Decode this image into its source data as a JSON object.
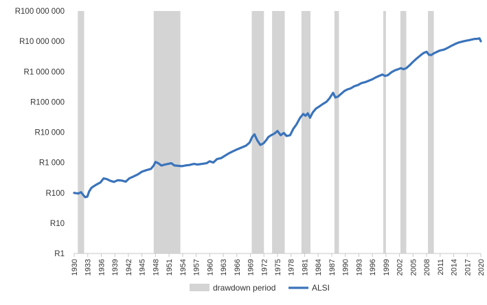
{
  "chart_data": {
    "type": "line",
    "title": "",
    "xlabel": "",
    "ylabel": "",
    "y_scale": "log",
    "ylim": [
      1,
      100000000
    ],
    "xlim": [
      1930,
      2020
    ],
    "grid": false,
    "legend_position": "bottom",
    "y_tick_labels": [
      "R1",
      "R10",
      "R100",
      "R1 000",
      "R10 000",
      "R100 000",
      "R1 000 000",
      "R10 000 000",
      "R100 000 000"
    ],
    "y_tick_values": [
      1,
      10,
      100,
      1000,
      10000,
      100000,
      1000000,
      10000000,
      100000000
    ],
    "x_tick_labels": [
      "1930",
      "1933",
      "1936",
      "1939",
      "1942",
      "1945",
      "1948",
      "1951",
      "1954",
      "1957",
      "1960",
      "1963",
      "1966",
      "1969",
      "1972",
      "1975",
      "1978",
      "1981",
      "1984",
      "1987",
      "1990",
      "1993",
      "1996",
      "1999",
      "2002",
      "2005",
      "2008",
      "2011",
      "2014",
      "2017",
      "2020"
    ],
    "series": [
      {
        "name": "ALSI",
        "color": "#3a73bb",
        "x": [
          1930,
          1930.9,
          1931.5,
          1932.0,
          1932.4,
          1932.9,
          1933.3,
          1933.8,
          1934.3,
          1935.0,
          1935.8,
          1936.5,
          1937.2,
          1938.0,
          1938.8,
          1939.6,
          1940.5,
          1941.4,
          1942.2,
          1943.0,
          1944.0,
          1945.0,
          1946.0,
          1947.0,
          1947.6,
          1948.0,
          1948.6,
          1949.3,
          1950.0,
          1950.8,
          1951.5,
          1952.2,
          1953.0,
          1953.8,
          1954.6,
          1955.5,
          1956.5,
          1957.3,
          1958.3,
          1959.3,
          1960.0,
          1960.8,
          1961.6,
          1962.5,
          1963.3,
          1964.2,
          1965.0,
          1966.0,
          1967.0,
          1968.0,
          1968.8,
          1969.4,
          1969.9,
          1970.5,
          1971.2,
          1971.9,
          1972.5,
          1973.0,
          1973.6,
          1974.3,
          1975.0,
          1975.7,
          1976.4,
          1977.0,
          1977.8,
          1978.5,
          1979.2,
          1980.0,
          1980.7,
          1981.2,
          1981.7,
          1982.2,
          1982.8,
          1983.5,
          1984.2,
          1985.0,
          1985.8,
          1986.5,
          1987.3,
          1987.8,
          1988.4,
          1989.0,
          1989.8,
          1990.5,
          1991.2,
          1992.0,
          1992.8,
          1993.6,
          1994.4,
          1995.2,
          1996.0,
          1996.8,
          1997.5,
          1998.2,
          1998.8,
          1999.4,
          2000.2,
          2001.0,
          2001.7,
          2002.3,
          2002.9,
          2003.5,
          2004.2,
          2005.0,
          2005.8,
          2006.6,
          2007.3,
          2008.0,
          2008.5,
          2009.0,
          2009.6,
          2010.3,
          2011.0,
          2011.8,
          2012.6,
          2013.4,
          2014.2,
          2015.0,
          2015.6,
          2016.2,
          2016.8,
          2017.5,
          2018.1,
          2018.7,
          2019.2,
          2019.7,
          2020.0
        ],
        "y": [
          100,
          95,
          105,
          85,
          72,
          75,
          110,
          145,
          165,
          190,
          220,
          300,
          285,
          250,
          230,
          260,
          255,
          235,
          300,
          340,
          400,
          500,
          560,
          620,
          800,
          1050,
          950,
          800,
          850,
          900,
          950,
          800,
          780,
          760,
          800,
          830,
          900,
          860,
          900,
          950,
          1100,
          1000,
          1300,
          1400,
          1650,
          2000,
          2300,
          2700,
          3100,
          3600,
          4500,
          7000,
          8500,
          5500,
          3800,
          4300,
          5500,
          7000,
          8000,
          9000,
          11000,
          8000,
          9500,
          7500,
          8000,
          13000,
          18000,
          30000,
          40000,
          35000,
          42000,
          30000,
          45000,
          60000,
          70000,
          85000,
          100000,
          130000,
          200000,
          140000,
          150000,
          180000,
          230000,
          260000,
          280000,
          330000,
          360000,
          420000,
          450000,
          500000,
          560000,
          650000,
          720000,
          800000,
          720000,
          760000,
          950000,
          1100000,
          1200000,
          1300000,
          1200000,
          1300000,
          1600000,
          2100000,
          2700000,
          3400000,
          4100000,
          4500000,
          3600000,
          3500000,
          4000000,
          4500000,
          5000000,
          5300000,
          6000000,
          7000000,
          8000000,
          9000000,
          9500000,
          10000000,
          10500000,
          11000000,
          11500000,
          12000000,
          12000000,
          12500000,
          10000000
        ]
      }
    ],
    "bands": {
      "name": "drawdown period",
      "color": "#d4d4d4",
      "periods": [
        [
          1930.8,
          1932.2
        ],
        [
          1947.6,
          1953.5
        ],
        [
          1969.3,
          1972.0
        ],
        [
          1973.8,
          1976.6
        ],
        [
          1980.3,
          1982.3
        ],
        [
          1987.6,
          1988.6
        ],
        [
          1998.4,
          1999.0
        ],
        [
          2002.2,
          2003.5
        ],
        [
          2008.3,
          2009.6
        ]
      ]
    }
  }
}
